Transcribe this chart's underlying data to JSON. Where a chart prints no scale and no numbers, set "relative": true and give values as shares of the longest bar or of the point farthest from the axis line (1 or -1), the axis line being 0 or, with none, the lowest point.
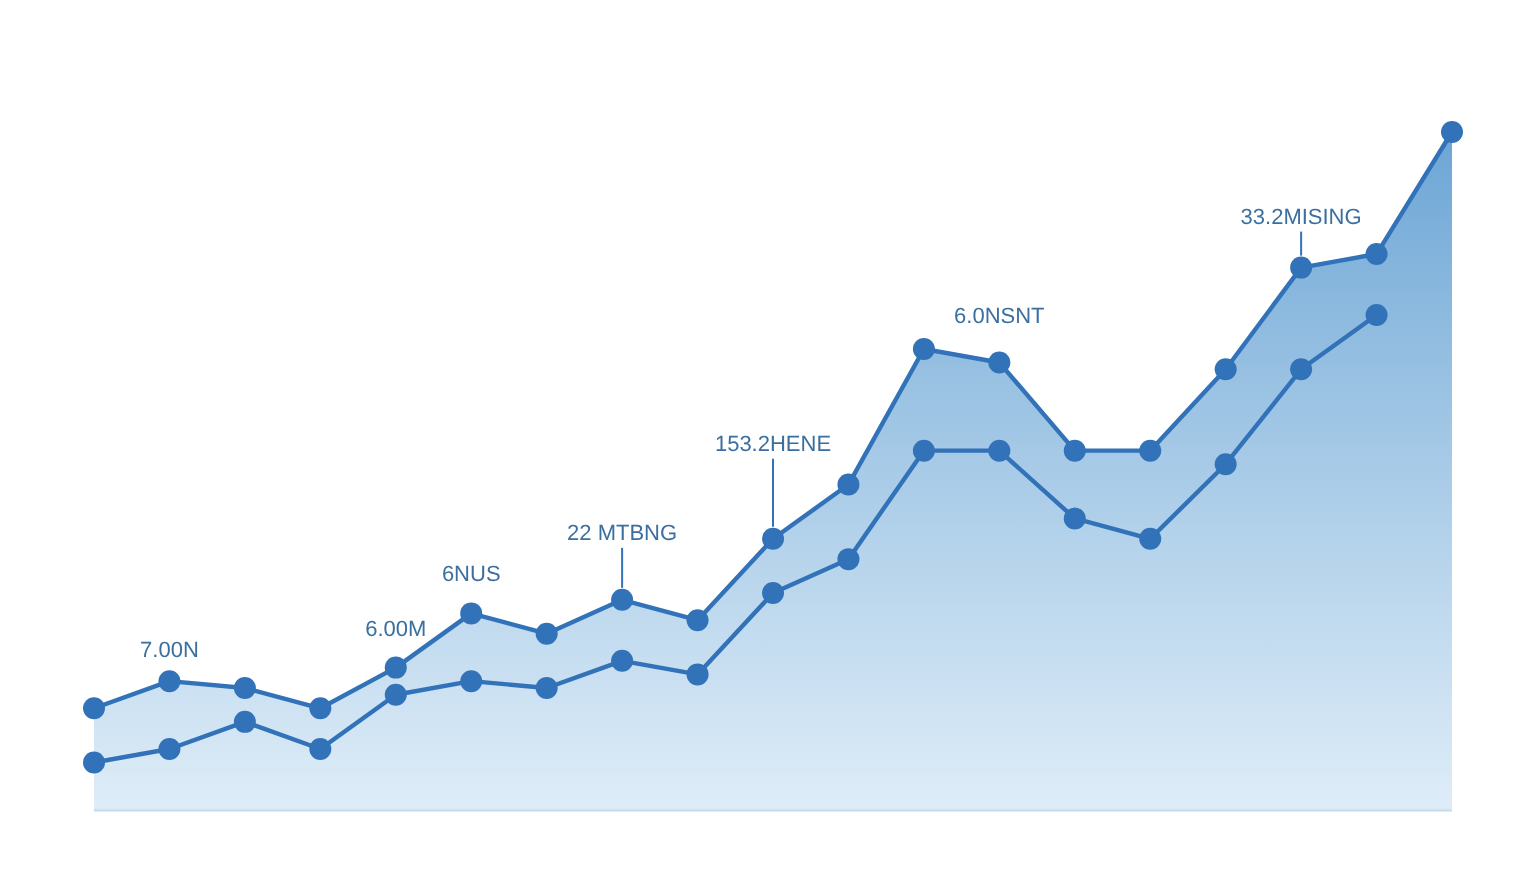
{
  "chart_data": {
    "type": "area",
    "relative": true,
    "marker": "circle",
    "categories": [
      null,
      null,
      null,
      null,
      null,
      null,
      null,
      null,
      null,
      null,
      null,
      null,
      null,
      null,
      null,
      null,
      null,
      null,
      null
    ],
    "series": [
      {
        "color": "#3172b8",
        "values": [
          0.15,
          0.19,
          0.18,
          0.15,
          0.21,
          0.29,
          0.26,
          0.31,
          0.28,
          0.4,
          0.48,
          0.68,
          0.66,
          0.53,
          0.53,
          0.65,
          0.8,
          0.82,
          1
        ]
      },
      {
        "type": "line",
        "color": "#3172b8",
        "values": [
          0.07,
          0.09,
          0.13,
          0.09,
          0.17,
          0.19,
          0.18,
          0.22,
          0.2,
          0.32,
          0.37,
          0.53,
          0.53,
          0.43,
          0.4,
          0.51,
          0.65,
          0.73,
          null
        ]
      }
    ],
    "annotations": [
      "7.00N",
      "6.00M",
      "6NUS",
      "22 MTBNG",
      "153.2HENE",
      "6.0NSNT",
      "33.2MISING"
    ]
  }
}
